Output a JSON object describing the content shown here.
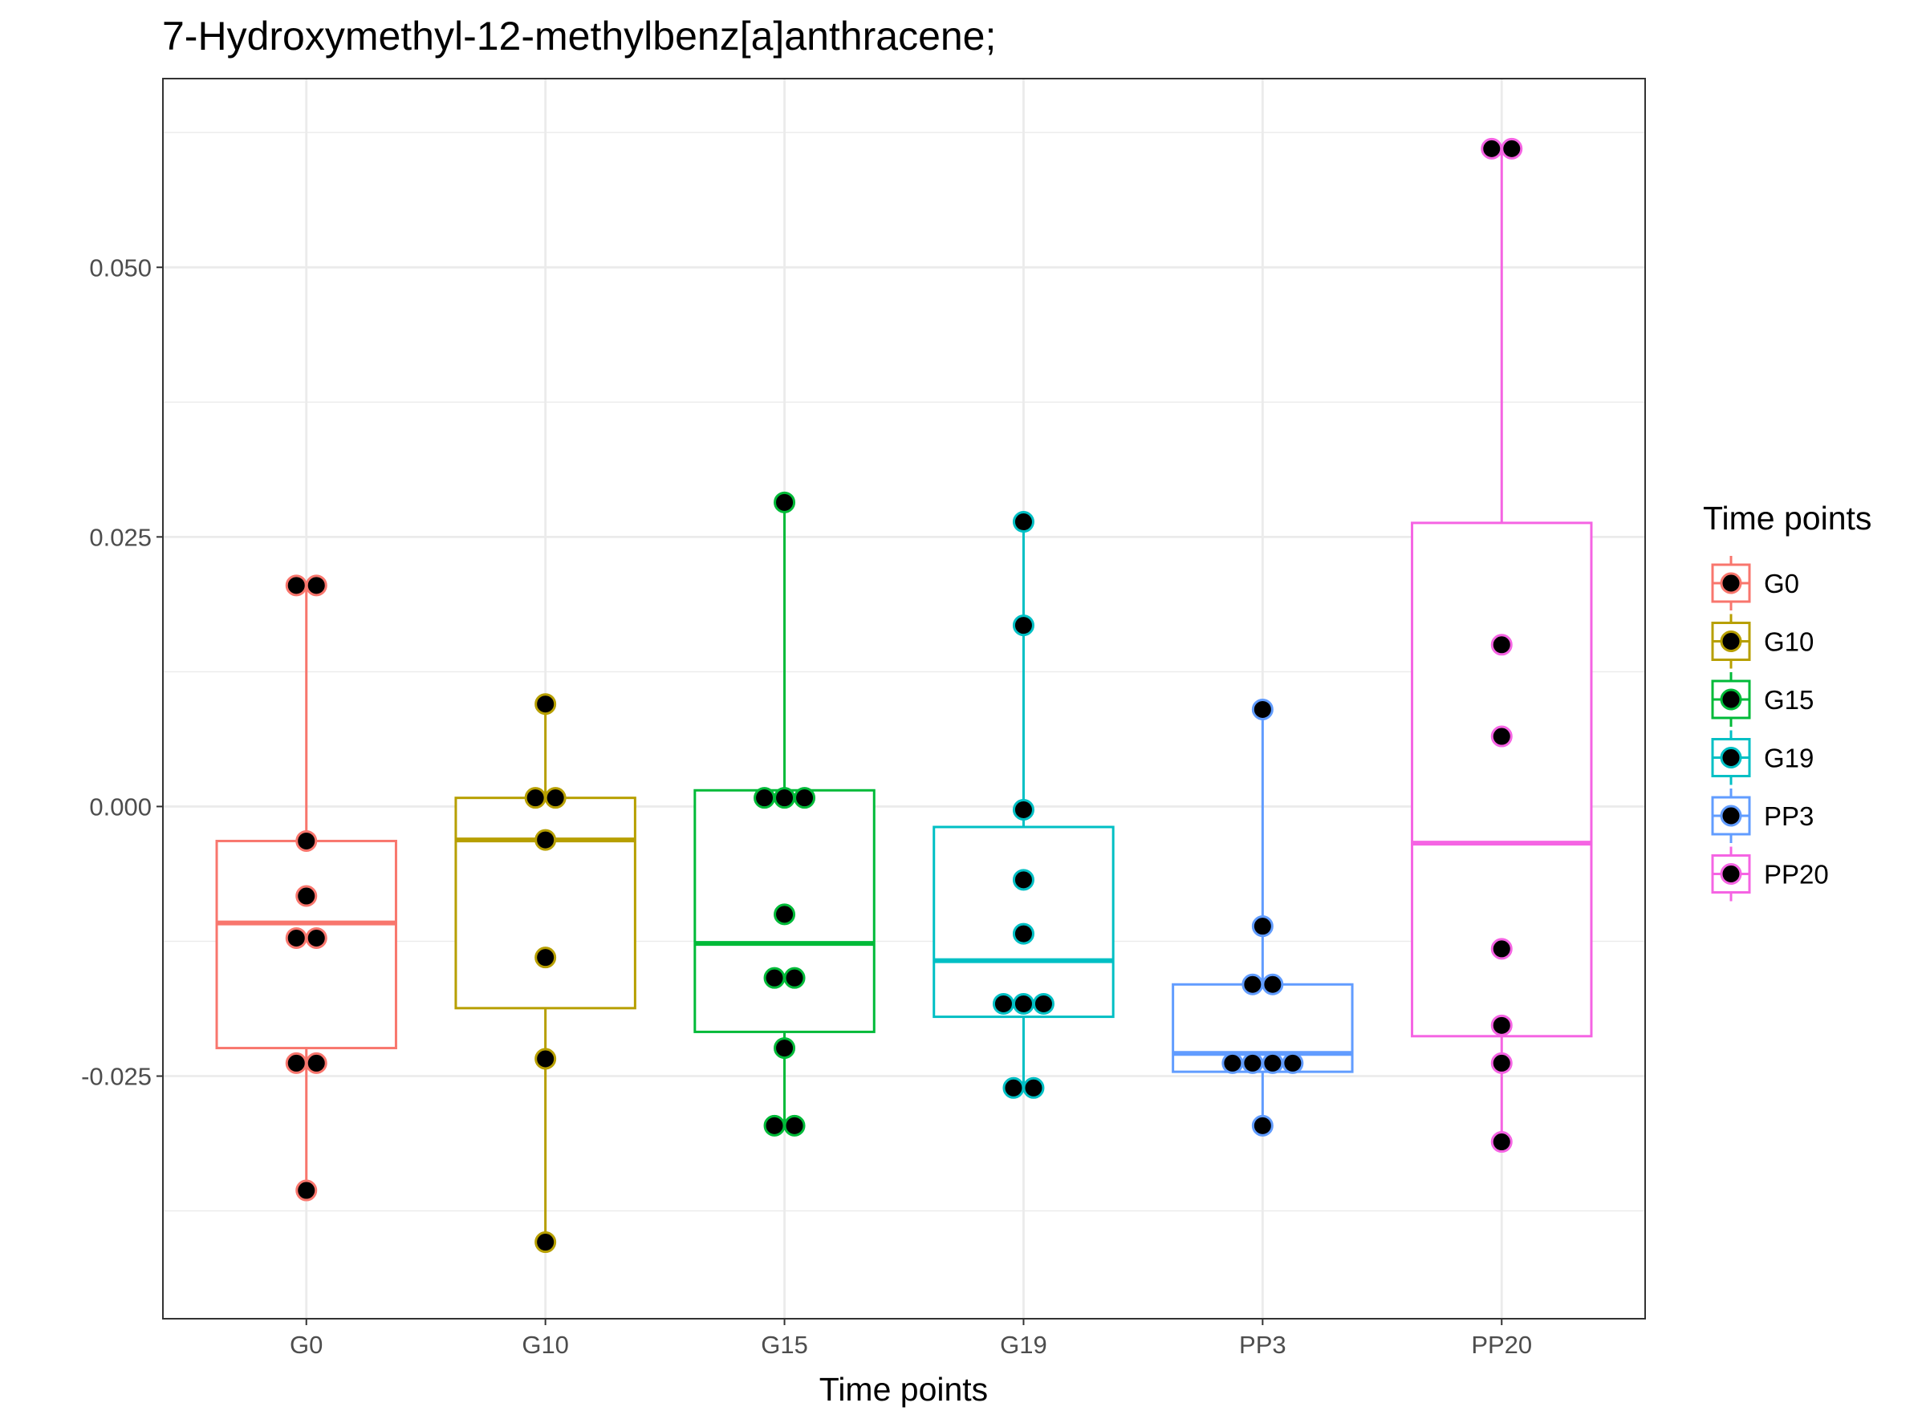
{
  "chart_data": {
    "type": "boxplot",
    "title": "7-Hydroxymethyl-12-methylbenz[a]anthracene;",
    "xlabel": "Time points",
    "ylabel": "",
    "ylim": [
      -0.0475,
      0.0675
    ],
    "yticks": [
      -0.025,
      0.0,
      0.025,
      0.05
    ],
    "ytick_labels": [
      "-0.025",
      "0.000",
      "0.025",
      "0.050"
    ],
    "categories": [
      "G0",
      "G10",
      "G15",
      "G19",
      "PP3",
      "PP20"
    ],
    "grid": true,
    "legend": {
      "title": "Time points",
      "position": "right",
      "entries": [
        "G0",
        "G10",
        "G15",
        "G19",
        "PP3",
        "PP20"
      ]
    },
    "series": [
      {
        "category": "G0",
        "color": "#F8766D",
        "box": {
          "min": -0.0356,
          "q1": -0.0224,
          "median": -0.0108,
          "q3": -0.0032,
          "max": 0.0205
        },
        "points": [
          0.0205,
          0.0205,
          -0.0032,
          -0.0083,
          -0.0122,
          -0.0122,
          -0.0238,
          -0.0238,
          -0.0356
        ]
      },
      {
        "category": "G10",
        "color": "#B79F00",
        "box": {
          "min": -0.0404,
          "q1": -0.0187,
          "median": -0.0031,
          "q3": 0.0008,
          "max": 0.0095
        },
        "points": [
          0.0095,
          0.0008,
          0.0008,
          -0.0031,
          -0.014,
          -0.0234,
          -0.0404
        ]
      },
      {
        "category": "G15",
        "color": "#00BA38",
        "box": {
          "min": -0.0296,
          "q1": -0.0209,
          "median": -0.0127,
          "q3": 0.0015,
          "max": 0.0282
        },
        "points": [
          0.0282,
          0.0008,
          0.0008,
          0.0008,
          -0.01,
          -0.0159,
          -0.0159,
          -0.0224,
          -0.0296,
          -0.0296
        ]
      },
      {
        "category": "G19",
        "color": "#00BFC4",
        "box": {
          "min": -0.0261,
          "q1": -0.0195,
          "median": -0.0143,
          "q3": -0.0019,
          "max": 0.0264
        },
        "points": [
          0.0264,
          0.0168,
          -0.0003,
          -0.0068,
          -0.0118,
          -0.0183,
          -0.0183,
          -0.0183,
          -0.0261,
          -0.0261
        ]
      },
      {
        "category": "PP3",
        "color": "#619CFF",
        "box": {
          "min": -0.0296,
          "q1": -0.0246,
          "median": -0.0229,
          "q3": -0.0165,
          "max": 0.009
        },
        "points": [
          0.009,
          -0.0111,
          -0.0165,
          -0.0165,
          -0.0238,
          -0.0238,
          -0.0238,
          -0.0238,
          -0.0296
        ]
      },
      {
        "category": "PP20",
        "color": "#F564E3",
        "box": {
          "min": -0.0311,
          "q1": -0.0213,
          "median": -0.0034,
          "q3": 0.0263,
          "max": 0.061
        },
        "points": [
          0.061,
          0.061,
          0.015,
          0.0065,
          -0.0132,
          -0.0203,
          -0.0238,
          -0.0311
        ]
      }
    ]
  }
}
